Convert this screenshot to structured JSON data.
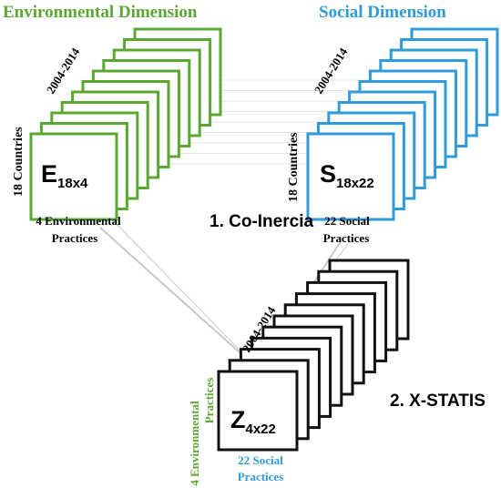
{
  "colors": {
    "environmental": "#5aa832",
    "social": "#2f9bd8",
    "combined": "#111111",
    "connector": "#c8c8c8"
  },
  "environmental": {
    "title": "Environmental Dimension",
    "years": "2004-2014",
    "rows_label": "18 Countries",
    "matrix_letter": "E",
    "matrix_subscript": "18x4",
    "cols_line1": "4 Environmental",
    "cols_line2": "Practices"
  },
  "social": {
    "title": "Social Dimension",
    "years": "2004-2014",
    "rows_label": "18 Countries",
    "matrix_letter": "S",
    "matrix_subscript": "18x22",
    "cols_line1": "22 Social",
    "cols_line2": "Practices"
  },
  "combined": {
    "years": "2004-2014",
    "rows_line1": "4 Environmental",
    "rows_line2": "Practices",
    "matrix_letter": "Z",
    "matrix_subscript": "4x22",
    "cols_line1": "22 Social",
    "cols_line2": "Practices"
  },
  "steps": {
    "step1": "1. Co-Inercia",
    "step2": "2. X-STATIS"
  }
}
